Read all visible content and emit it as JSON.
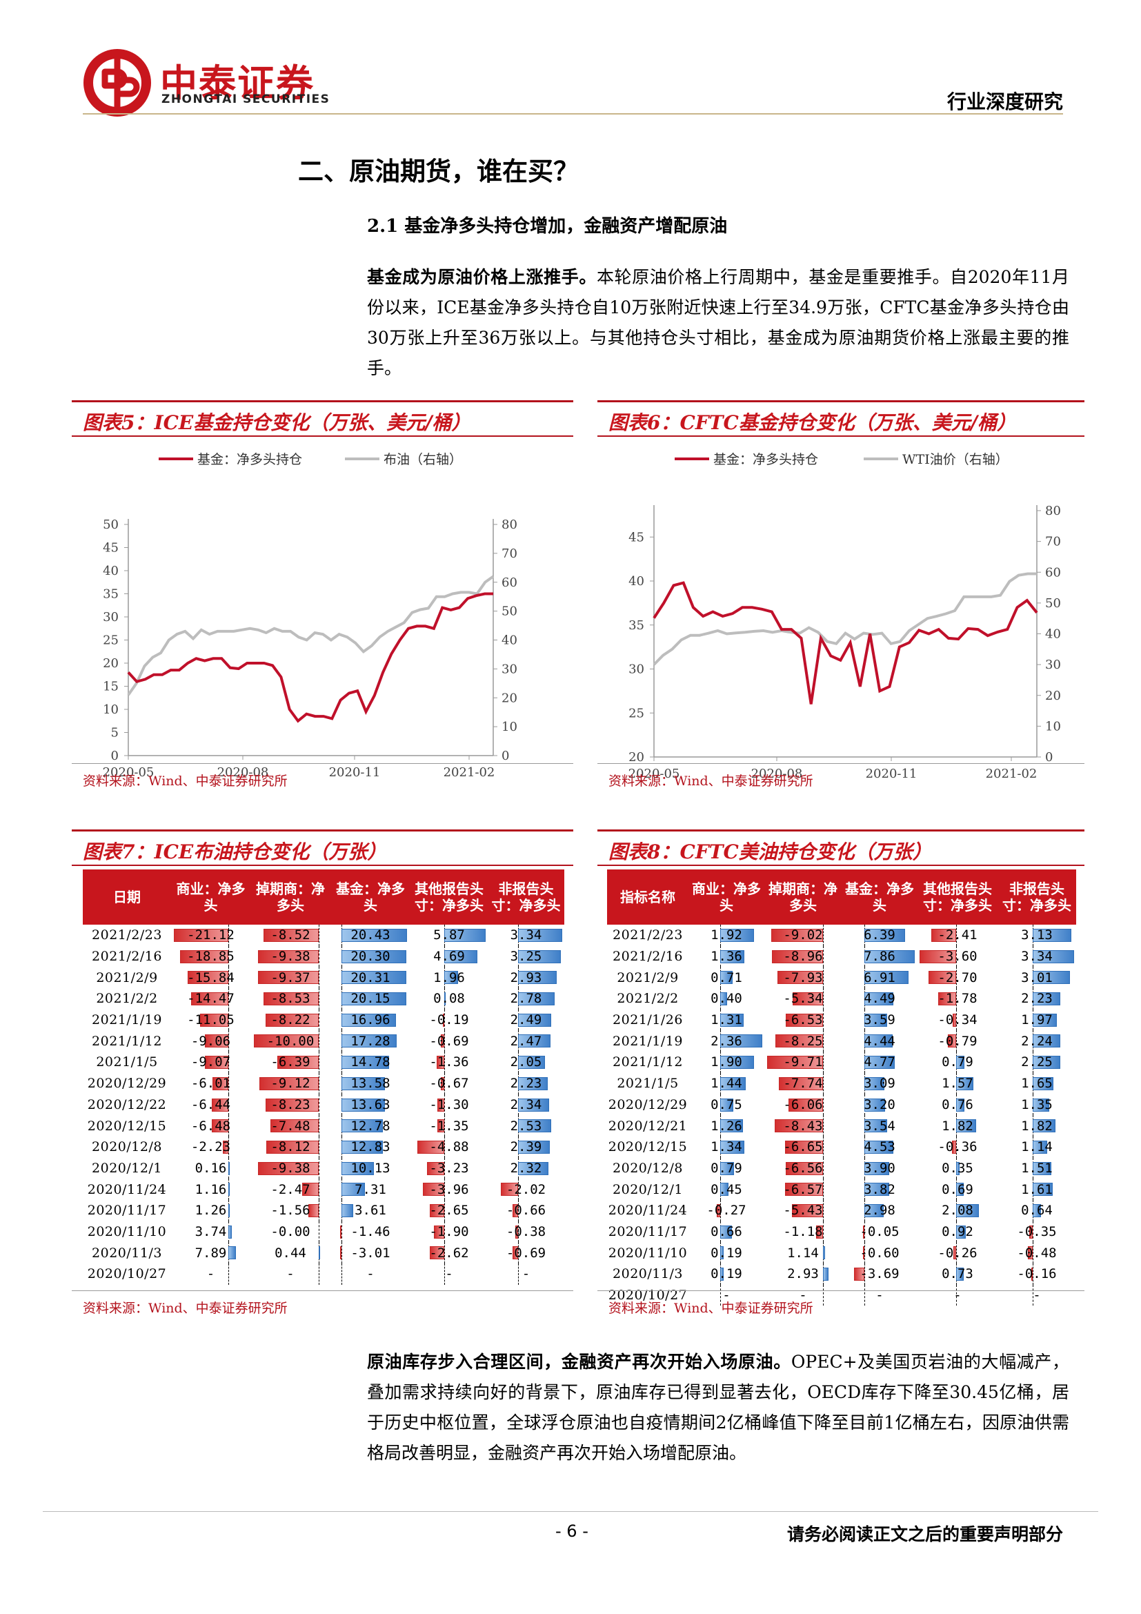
{
  "header": {
    "logo_cn": "中泰证券",
    "logo_en": "ZHONGTAI SECURITIES",
    "report_type": "行业深度研究"
  },
  "section_title": "二、原油期货，谁在买？",
  "subsection_title": "2.1 基金净多头持仓增加，金融资产增配原油",
  "para1": {
    "bold": "基金成为原油价格上涨推手。",
    "text": "本轮原油价格上行周期中，基金是重要推手。自2020年11月份以来，ICE基金净多头持仓自10万张附近快速上行至34.9万张，CFTC基金净多头持仓由30万张上升至36万张以上。与其他持仓头寸相比，基金成为原油期货价格上涨最主要的推手。"
  },
  "para2": {
    "bold": "原油库存步入合理区间，金融资产再次开始入场原油。",
    "text": "OPEC+及美国页岩油的大幅减产，叠加需求持续向好的背景下，原油库存已得到显著去化，OECD库存下降至30.45亿桶，居于历史中枢位置，全球浮仓原油也自疫情期间2亿桶峰值下降至目前1亿桶左右，因原油供需格局改善明显，金融资产再次开始入场增配原油。"
  },
  "source_text": "资料来源：Wind、中泰证券研究所",
  "colors": {
    "brand_red": "#c8161d",
    "series_red": "#c0102a",
    "series_gray": "#bdbdbd",
    "bar_red": "#d32f2f",
    "bar_blue": "#3f7fc8"
  },
  "chart_data": [
    {
      "type": "line",
      "title": "图表5：ICE基金持仓变化（万张、美元/桶）",
      "legend": [
        "基金：净多头持仓",
        "布油（右轴）"
      ],
      "legend_position": "top",
      "x_ticks": [
        "2020-05",
        "2020-08",
        "2020-11",
        "2021-02"
      ],
      "y_left": {
        "ticks": [
          0,
          5,
          10,
          15,
          20,
          25,
          30,
          35,
          40,
          45,
          50
        ],
        "lim": [
          0,
          50
        ]
      },
      "y_right": {
        "ticks": [
          0,
          10,
          20,
          30,
          40,
          50,
          60,
          70,
          80
        ],
        "lim": [
          0,
          80
        ]
      },
      "series": [
        {
          "name": "基金：净多头持仓",
          "axis": "left",
          "values": [
            18,
            16,
            16.5,
            17.5,
            17.5,
            18.5,
            18.5,
            20,
            21,
            20.5,
            21,
            21,
            19,
            18.8,
            20,
            20,
            20,
            19.5,
            17,
            10,
            7.5,
            9,
            8.5,
            8.5,
            8,
            12,
            13.5,
            14,
            9.5,
            13,
            18,
            22,
            25,
            27.5,
            28,
            28,
            27.5,
            32,
            31.5,
            32,
            34,
            34.6,
            35,
            35
          ]
        },
        {
          "name": "布油（右轴）",
          "axis": "right",
          "values": [
            21,
            25,
            31,
            34,
            35.5,
            40,
            42,
            43,
            40.5,
            43.5,
            42,
            43,
            43,
            43,
            43.5,
            44,
            43.5,
            42.5,
            44,
            43,
            43,
            41,
            40,
            42.5,
            42,
            40,
            42,
            41,
            39,
            36,
            38,
            41,
            43,
            44.5,
            46,
            49.5,
            50.5,
            51,
            55,
            55,
            56,
            56.5,
            56.5,
            56,
            60,
            62
          ]
        }
      ]
    },
    {
      "type": "line",
      "title": "图表6：CFTC基金持仓变化（万张、美元/桶）",
      "legend": [
        "基金：净多头持仓",
        "WTI油价（右轴）"
      ],
      "legend_position": "top",
      "x_ticks": [
        "2020-05",
        "2020-08",
        "2020-11",
        "2021-02"
      ],
      "y_left": {
        "ticks": [
          20,
          25,
          30,
          35,
          40,
          45
        ],
        "lim": [
          20,
          48
        ]
      },
      "y_right": {
        "ticks": [
          0,
          10,
          20,
          30,
          40,
          50,
          60,
          70,
          80
        ],
        "lim": [
          0,
          80
        ]
      },
      "series": [
        {
          "name": "基金：净多头持仓",
          "axis": "left",
          "values": [
            35.8,
            37.5,
            39.5,
            39.8,
            37,
            36,
            36.5,
            36,
            36.3,
            37,
            37,
            36.8,
            36.5,
            34.5,
            34.5,
            33.5,
            26,
            33.5,
            31.5,
            31,
            33,
            28,
            34,
            27.5,
            28,
            32.5,
            33,
            34.4,
            34,
            34.5,
            33.5,
            33.4,
            34.6,
            34.5,
            33.8,
            34.2,
            34.5,
            37,
            37.8,
            36.4
          ]
        },
        {
          "name": "WTI油价（右轴）",
          "axis": "right",
          "values": [
            30,
            33,
            35,
            38,
            39.5,
            39.5,
            40.2,
            41,
            40,
            40.3,
            40.5,
            40.8,
            41,
            40.5,
            41,
            40.5,
            40.2,
            42,
            40.5,
            37.5,
            36.8,
            40.2,
            38.3,
            40.2,
            39.8,
            40.2,
            36.8,
            37.5,
            41,
            43,
            45,
            45.7,
            46.5,
            47.5,
            52,
            52,
            52,
            52,
            52.5,
            57,
            59,
            59.5,
            59.5
          ]
        }
      ]
    },
    {
      "type": "table",
      "title": "图表7：ICE布油持仓变化（万张）",
      "columns": [
        "日期",
        "商业：净多头",
        "掉期商：净多头",
        "基金：净多头",
        "其他报告头寸：净多头",
        "非报告头寸：净多头"
      ],
      "rows": [
        {
          "date": "2021/2/23",
          "values": [
            "-21.12",
            "-8.52",
            "20.43",
            "5.87",
            "3.34"
          ]
        },
        {
          "date": "2021/2/16",
          "values": [
            "-18.85",
            "-9.38",
            "20.30",
            "4.69",
            "3.25"
          ]
        },
        {
          "date": "2021/2/9",
          "values": [
            "-15.84",
            "-9.37",
            "20.31",
            "1.96",
            "2.93"
          ]
        },
        {
          "date": "2021/2/2",
          "values": [
            "-14.47",
            "-8.53",
            "20.15",
            "0.08",
            "2.78"
          ]
        },
        {
          "date": "2021/1/19",
          "values": [
            "-11.05",
            "-8.22",
            "16.96",
            "-0.19",
            "2.49"
          ]
        },
        {
          "date": "2021/1/12",
          "values": [
            "-9.06",
            "-10.00",
            "17.28",
            "-0.69",
            "2.47"
          ]
        },
        {
          "date": "2021/1/5",
          "values": [
            "-9.07",
            "-6.39",
            "14.78",
            "-1.36",
            "2.05"
          ]
        },
        {
          "date": "2020/12/29",
          "values": [
            "-6.01",
            "-9.12",
            "13.58",
            "-0.67",
            "2.23"
          ]
        },
        {
          "date": "2020/12/22",
          "values": [
            "-6.44",
            "-8.23",
            "13.63",
            "-1.30",
            "2.34"
          ]
        },
        {
          "date": "2020/12/15",
          "values": [
            "-6.48",
            "-7.48",
            "12.78",
            "-1.35",
            "2.53"
          ]
        },
        {
          "date": "2020/12/8",
          "values": [
            "-2.23",
            "-8.12",
            "12.83",
            "-4.88",
            "2.39"
          ]
        },
        {
          "date": "2020/12/1",
          "values": [
            "0.16",
            "-9.38",
            "10.13",
            "-3.23",
            "2.32"
          ]
        },
        {
          "date": "2020/11/24",
          "values": [
            "1.16",
            "-2.47",
            "7.31",
            "-3.96",
            "-2.02"
          ]
        },
        {
          "date": "2020/11/17",
          "values": [
            "1.26",
            "-1.56",
            "3.61",
            "-2.65",
            "-0.66"
          ]
        },
        {
          "date": "2020/11/10",
          "values": [
            "3.74",
            "-0.00",
            "-1.46",
            "-1.90",
            "-0.38"
          ]
        },
        {
          "date": "2020/11/3",
          "values": [
            "7.89",
            "0.44",
            "-3.01",
            "-2.62",
            "-0.69"
          ]
        },
        {
          "date": "2020/10/27",
          "values": [
            "-",
            "-",
            "-",
            "-",
            "-"
          ]
        }
      ]
    },
    {
      "type": "table",
      "title": "图表8：CFTC美油持仓变化（万张）",
      "columns": [
        "指标名称",
        "商业：净多头",
        "掉期商：净多头",
        "基金：净多头",
        "其他报告头寸：净多头",
        "非报告头寸：净多头"
      ],
      "rows": [
        {
          "date": "2021/2/23",
          "values": [
            "1.92",
            "-9.02",
            "6.39",
            "-2.41",
            "3.13"
          ]
        },
        {
          "date": "2021/2/16",
          "values": [
            "1.36",
            "-8.96",
            "7.86",
            "-3.60",
            "3.34"
          ]
        },
        {
          "date": "2021/2/9",
          "values": [
            "0.71",
            "-7.93",
            "6.91",
            "-2.70",
            "3.01"
          ]
        },
        {
          "date": "2021/2/2",
          "values": [
            "0.40",
            "-5.34",
            "4.49",
            "-1.78",
            "2.23"
          ]
        },
        {
          "date": "2021/1/26",
          "values": [
            "1.31",
            "-6.53",
            "3.59",
            "-0.34",
            "1.97"
          ]
        },
        {
          "date": "2021/1/19",
          "values": [
            "2.36",
            "-8.25",
            "4.44",
            "-0.79",
            "2.24"
          ]
        },
        {
          "date": "2021/1/12",
          "values": [
            "1.90",
            "-9.71",
            "4.77",
            "0.79",
            "2.25"
          ]
        },
        {
          "date": "2021/1/5",
          "values": [
            "1.44",
            "-7.74",
            "3.09",
            "1.57",
            "1.65"
          ]
        },
        {
          "date": "2020/12/29",
          "values": [
            "0.75",
            "-6.06",
            "3.20",
            "0.76",
            "1.35"
          ]
        },
        {
          "date": "2020/12/21",
          "values": [
            "1.26",
            "-8.43",
            "3.54",
            "1.82",
            "1.82"
          ]
        },
        {
          "date": "2020/12/15",
          "values": [
            "1.34",
            "-6.65",
            "4.53",
            "-0.36",
            "1.14"
          ]
        },
        {
          "date": "2020/12/8",
          "values": [
            "0.79",
            "-6.56",
            "3.90",
            "0.35",
            "1.51"
          ]
        },
        {
          "date": "2020/12/1",
          "values": [
            "0.45",
            "-6.57",
            "3.82",
            "0.69",
            "1.61"
          ]
        },
        {
          "date": "2020/11/24",
          "values": [
            "-0.27",
            "-5.43",
            "2.98",
            "2.08",
            "0.64"
          ]
        },
        {
          "date": "2020/11/17",
          "values": [
            "0.66",
            "-1.18",
            "-0.05",
            "0.92",
            "-0.35"
          ]
        },
        {
          "date": "2020/11/10",
          "values": [
            "0.19",
            "1.14",
            "-0.60",
            "-0.26",
            "-0.48"
          ]
        },
        {
          "date": "2020/11/3",
          "values": [
            "0.19",
            "2.93",
            "-3.69",
            "0.73",
            "-0.16"
          ]
        },
        {
          "date": "2020/10/27",
          "values": [
            "-",
            "-",
            "-",
            "-",
            "-"
          ]
        }
      ]
    }
  ],
  "footer": {
    "page": "- 6 -",
    "notice": "请务必阅读正文之后的重要声明部分"
  }
}
